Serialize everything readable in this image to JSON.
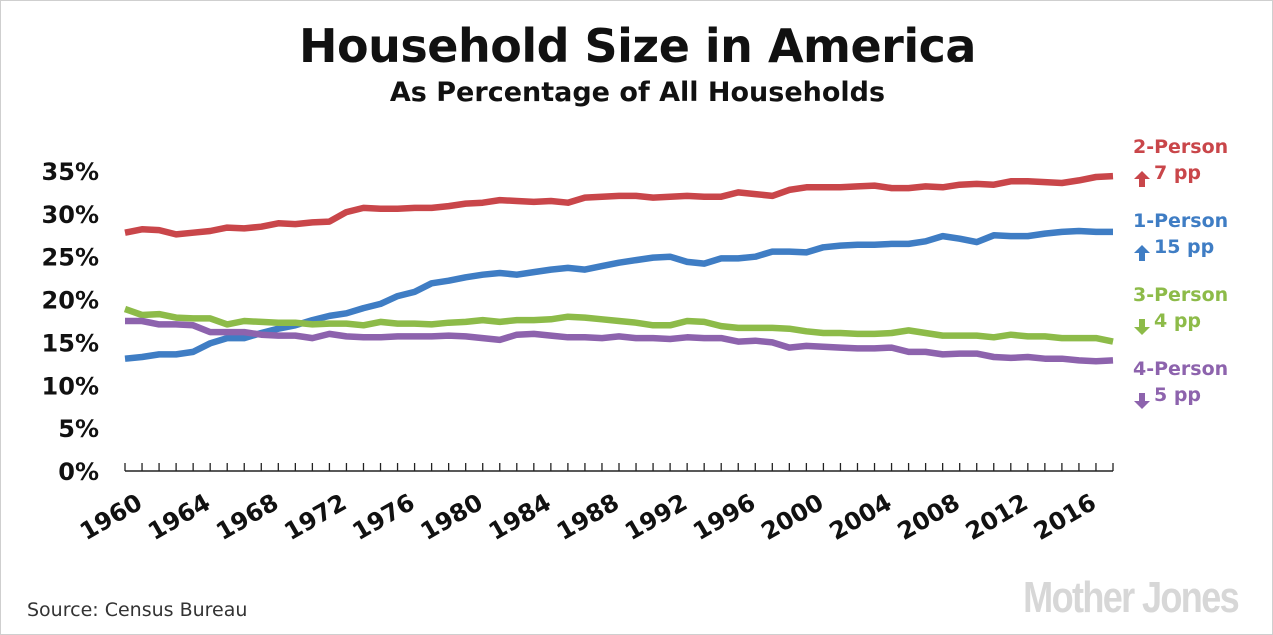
{
  "title": "Household Size in America",
  "subtitle": "As Percentage of All Households",
  "source": "Source: Census Bureau",
  "logo_text": "Mother Jones",
  "chart_data": {
    "type": "line",
    "title": "Household Size in America",
    "subtitle": "As Percentage of All Households",
    "xlabel": "",
    "ylabel": "",
    "xlim": [
      1960,
      2018
    ],
    "ylim": [
      0,
      35
    ],
    "y_ticks": [
      "0%",
      "5%",
      "10%",
      "15%",
      "20%",
      "25%",
      "30%",
      "35%"
    ],
    "y_tick_values": [
      0,
      5,
      10,
      15,
      20,
      25,
      30,
      35
    ],
    "x_ticks": [
      "1960",
      "1964",
      "1968",
      "1972",
      "1976",
      "1980",
      "1984",
      "1988",
      "1992",
      "1996",
      "2000",
      "2004",
      "2008",
      "2012",
      "2016"
    ],
    "x_tick_values": [
      1960,
      1964,
      1968,
      1972,
      1976,
      1980,
      1984,
      1988,
      1992,
      1996,
      2000,
      2004,
      2008,
      2012,
      2016
    ],
    "grid": false,
    "legend_placement": "right",
    "x": [
      1960,
      1961,
      1962,
      1963,
      1964,
      1965,
      1966,
      1967,
      1968,
      1969,
      1970,
      1971,
      1972,
      1973,
      1974,
      1975,
      1976,
      1977,
      1978,
      1979,
      1980,
      1981,
      1982,
      1983,
      1984,
      1985,
      1986,
      1987,
      1988,
      1989,
      1990,
      1991,
      1992,
      1993,
      1994,
      1995,
      1996,
      1997,
      1998,
      1999,
      2000,
      2001,
      2002,
      2003,
      2004,
      2005,
      2006,
      2007,
      2008,
      2009,
      2010,
      2011,
      2012,
      2013,
      2014,
      2015,
      2016,
      2017,
      2018
    ],
    "series": [
      {
        "name": "2-Person",
        "change": "7 pp",
        "direction": "up",
        "color": "#c9464a",
        "values": [
          27.8,
          28.2,
          28.1,
          27.6,
          27.8,
          28.0,
          28.4,
          28.3,
          28.5,
          28.9,
          28.8,
          29.0,
          29.1,
          30.2,
          30.7,
          30.6,
          30.6,
          30.7,
          30.7,
          30.9,
          31.2,
          31.3,
          31.6,
          31.5,
          31.4,
          31.5,
          31.3,
          31.9,
          32.0,
          32.1,
          32.1,
          31.9,
          32.0,
          32.1,
          32.0,
          32.0,
          32.5,
          32.3,
          32.1,
          32.8,
          33.1,
          33.1,
          33.1,
          33.2,
          33.3,
          33.0,
          33.0,
          33.2,
          33.1,
          33.4,
          33.5,
          33.4,
          33.8,
          33.8,
          33.7,
          33.6,
          33.9,
          34.3,
          34.4
        ]
      },
      {
        "name": "1-Person",
        "change": "15 pp",
        "direction": "up",
        "color": "#3f7dc4",
        "values": [
          13.1,
          13.3,
          13.6,
          13.6,
          13.9,
          14.9,
          15.5,
          15.5,
          16.1,
          16.6,
          17.0,
          17.6,
          18.1,
          18.4,
          19.0,
          19.5,
          20.4,
          20.9,
          21.9,
          22.2,
          22.6,
          22.9,
          23.1,
          22.9,
          23.2,
          23.5,
          23.7,
          23.5,
          23.9,
          24.3,
          24.6,
          24.9,
          25.0,
          24.4,
          24.2,
          24.8,
          24.8,
          25.0,
          25.6,
          25.6,
          25.5,
          26.1,
          26.3,
          26.4,
          26.4,
          26.5,
          26.5,
          26.8,
          27.4,
          27.1,
          26.7,
          27.5,
          27.4,
          27.4,
          27.7,
          27.9,
          28.0,
          27.9,
          27.9
        ]
      },
      {
        "name": "3-Person",
        "change": "4 pp",
        "direction": "down",
        "color": "#8dbb49",
        "values": [
          18.9,
          18.2,
          18.3,
          17.9,
          17.8,
          17.8,
          17.1,
          17.5,
          17.4,
          17.3,
          17.3,
          17.1,
          17.2,
          17.2,
          17.0,
          17.4,
          17.2,
          17.2,
          17.1,
          17.3,
          17.4,
          17.6,
          17.4,
          17.6,
          17.6,
          17.7,
          18.0,
          17.9,
          17.7,
          17.5,
          17.3,
          17.0,
          17.0,
          17.5,
          17.4,
          16.9,
          16.7,
          16.7,
          16.7,
          16.6,
          16.3,
          16.1,
          16.1,
          16.0,
          16.0,
          16.1,
          16.4,
          16.1,
          15.8,
          15.8,
          15.8,
          15.6,
          15.9,
          15.7,
          15.7,
          15.5,
          15.5,
          15.5,
          15.1
        ]
      },
      {
        "name": "4-Person",
        "change": "5 pp",
        "direction": "down",
        "color": "#8d63ad",
        "values": [
          17.5,
          17.5,
          17.1,
          17.1,
          17.0,
          16.2,
          16.2,
          16.2,
          15.9,
          15.8,
          15.8,
          15.5,
          16.0,
          15.7,
          15.6,
          15.6,
          15.7,
          15.7,
          15.7,
          15.8,
          15.7,
          15.5,
          15.3,
          15.9,
          16.0,
          15.8,
          15.6,
          15.6,
          15.5,
          15.7,
          15.5,
          15.5,
          15.4,
          15.6,
          15.5,
          15.5,
          15.1,
          15.2,
          15.0,
          14.4,
          14.6,
          14.5,
          14.4,
          14.3,
          14.3,
          14.4,
          13.9,
          13.9,
          13.6,
          13.7,
          13.7,
          13.3,
          13.2,
          13.3,
          13.1,
          13.1,
          12.9,
          12.8,
          12.9
        ]
      }
    ]
  }
}
